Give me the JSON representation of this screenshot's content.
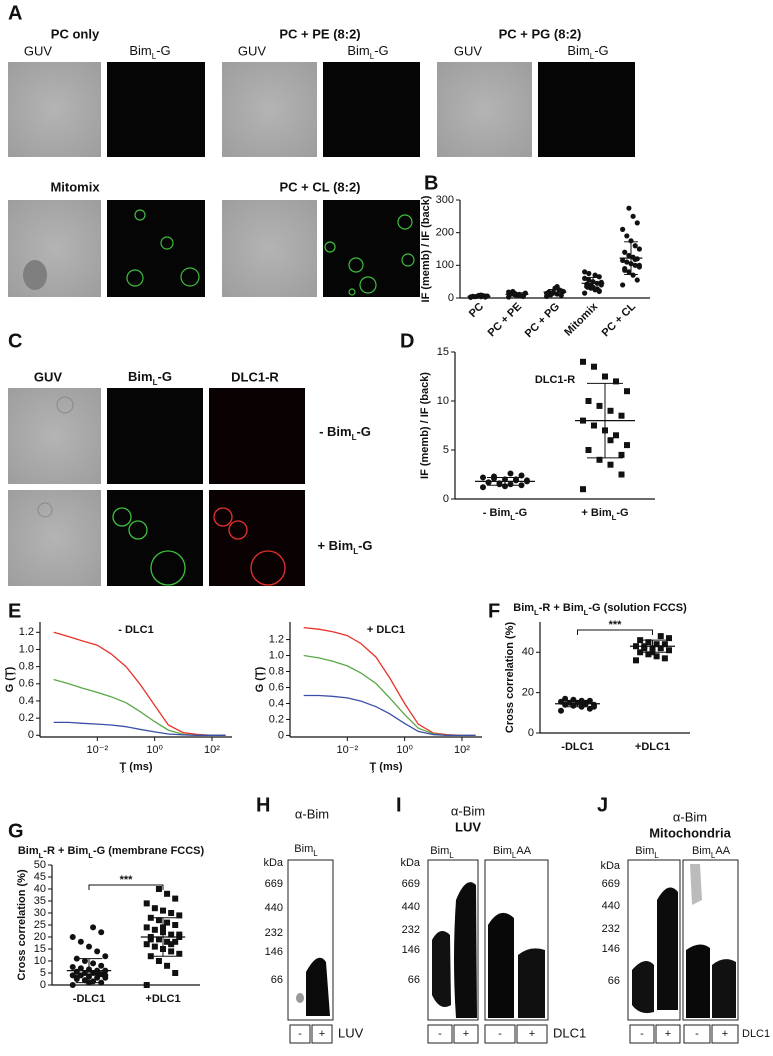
{
  "panels": {
    "A": {
      "letter": "A",
      "groups": [
        {
          "title": "PC only",
          "left": "GUV",
          "right": [
            "Bim",
            "L",
            "-G"
          ]
        },
        {
          "title": "PC +  PE (8:2)",
          "left": "GUV",
          "right": [
            "Bim",
            "L",
            "-G"
          ]
        },
        {
          "title": "PC + PG (8:2)",
          "left": "GUV",
          "right": [
            "Bim",
            "L",
            "-G"
          ]
        },
        {
          "title": "Mitomix"
        },
        {
          "title": "PC + CL (8:2)"
        }
      ]
    },
    "B": {
      "letter": "B"
    },
    "C": {
      "letter": "C",
      "columns": [
        "GUV",
        [
          "Bim",
          "L",
          "-G"
        ],
        "DLC1-R"
      ],
      "rows": [
        [
          "- Bim",
          "L",
          "-G"
        ],
        [
          "+ Bim",
          "L",
          "-G"
        ]
      ]
    },
    "D": {
      "letter": "D"
    },
    "E": {
      "letter": "E"
    },
    "F": {
      "letter": "F"
    },
    "G": {
      "letter": "G"
    },
    "H": {
      "letter": "H",
      "antibody": "α-Bim",
      "lanes": [
        [
          "Bim",
          "L"
        ]
      ],
      "kda": "kDa",
      "markers": [
        669,
        440,
        232,
        146,
        66
      ],
      "signs": [
        "-",
        "+"
      ],
      "condition": "LUV"
    },
    "I": {
      "letter": "I",
      "antibody": "α-Bim",
      "sample": "LUV",
      "lanes": [
        [
          "Bim",
          "L"
        ],
        [
          "Bim",
          "L",
          "AA"
        ]
      ],
      "kda": "kDa",
      "markers": [
        669,
        440,
        232,
        146,
        66
      ],
      "signs": [
        "-",
        "+",
        "-",
        "+"
      ],
      "condition": "DLC1"
    },
    "J": {
      "letter": "J",
      "antibody": "α-Bim",
      "sample": "Mitochondria",
      "lanes": [
        [
          "Bim",
          "L"
        ],
        [
          "Bim",
          "L",
          "AA"
        ]
      ],
      "kda": "kDa",
      "markers": [
        669,
        440,
        232,
        146,
        66
      ],
      "signs": [
        "-",
        "+",
        "-",
        "+"
      ],
      "condition": "DLC1"
    }
  },
  "chart_data": [
    {
      "type": "strip",
      "y_label": "IF (memb) / IF (back)",
      "categories": [
        "PC",
        "PC + PE",
        "PC + PG",
        "Mitomix",
        "PC + CL"
      ],
      "values": [
        [
          2,
          3,
          4,
          5,
          5,
          6,
          7,
          8,
          4,
          3,
          6,
          9
        ],
        [
          3,
          5,
          8,
          10,
          12,
          15,
          6,
          9,
          20,
          18,
          7,
          11,
          14
        ],
        [
          5,
          8,
          12,
          15,
          18,
          20,
          25,
          30,
          10,
          14,
          22,
          35,
          17
        ],
        [
          15,
          20,
          25,
          30,
          35,
          40,
          45,
          50,
          55,
          60,
          65,
          70,
          38,
          42,
          48,
          28,
          33,
          75,
          80,
          22
        ],
        [
          40,
          55,
          70,
          80,
          90,
          95,
          100,
          105,
          110,
          115,
          120,
          125,
          130,
          140,
          150,
          160,
          175,
          190,
          210,
          230,
          250,
          275,
          85,
          100,
          118
        ]
      ],
      "means": [
        5,
        11,
        18,
        45,
        122
      ],
      "sds": [
        2,
        5,
        8,
        18,
        50
      ],
      "ylim": [
        0,
        300
      ],
      "yticks": [
        0,
        100,
        200,
        300
      ],
      "color": "#111111"
    },
    {
      "type": "strip",
      "title": "DLC1-R",
      "y_label": "IF (memb) / IF (back)",
      "categories": [
        [
          "- Bim",
          "L",
          "-G"
        ],
        [
          "+ Bim",
          "L",
          "-G"
        ]
      ],
      "values": [
        [
          1.2,
          1.4,
          1.5,
          1.6,
          1.7,
          1.8,
          1.9,
          2.0,
          2.1,
          2.2,
          2.4,
          2.6,
          1.5,
          1.7,
          1.9,
          2.0,
          1.3,
          2.3
        ],
        [
          1.0,
          2.5,
          3.5,
          4.0,
          5.0,
          5.5,
          6.5,
          7.0,
          7.5,
          8.0,
          8.5,
          9.0,
          9.5,
          10.0,
          11.0,
          12.0,
          12.5,
          13.5,
          14.0,
          4.5,
          6.0
        ]
      ],
      "means": [
        1.8,
        8
      ],
      "sds": [
        0.4,
        3.8
      ],
      "markers": [
        "circle",
        "square"
      ],
      "ylim": [
        0,
        15
      ],
      "yticks": [
        0,
        5,
        10,
        15
      ],
      "color": "#111111"
    },
    {
      "type": "line",
      "title": "- DLC1",
      "y_label": "G (Ţ)",
      "x_label": "Ţ (ms)",
      "xlog": true,
      "x": [
        0.0003,
        0.001,
        0.003,
        0.01,
        0.03,
        0.1,
        0.3,
        1,
        3,
        10,
        30,
        100,
        300
      ],
      "series": [
        {
          "color": "#e8322a",
          "values": [
            1.2,
            1.15,
            1.1,
            1.05,
            0.95,
            0.8,
            0.6,
            0.35,
            0.12,
            0.03,
            0.01,
            0,
            0
          ]
        },
        {
          "color": "#5aa846",
          "values": [
            0.65,
            0.6,
            0.55,
            0.5,
            0.45,
            0.38,
            0.28,
            0.16,
            0.06,
            0.01,
            0,
            0,
            0
          ]
        },
        {
          "color": "#3b4fa8",
          "values": [
            0.15,
            0.15,
            0.14,
            0.13,
            0.12,
            0.1,
            0.07,
            0.04,
            0.015,
            0.005,
            0,
            0,
            0
          ]
        }
      ],
      "xlim": [
        0.0001,
        500
      ],
      "xticks": [
        {
          "value": 0.01,
          "label": "10⁻²"
        },
        {
          "value": 1,
          "label": "10⁰"
        },
        {
          "value": 100,
          "label": "10²"
        }
      ],
      "ylim": [
        -0.02,
        1.32
      ],
      "yticks": [
        0,
        0.2,
        0.4,
        0.6,
        0.8,
        {
          "value": 1,
          "label": "1.0"
        },
        1.2
      ]
    },
    {
      "type": "line",
      "title": "+ DLC1",
      "y_label": "G (Ţ)",
      "x_label": "Ţ (ms)",
      "xlog": true,
      "x": [
        0.0003,
        0.001,
        0.003,
        0.01,
        0.03,
        0.1,
        0.3,
        1,
        3,
        10,
        30,
        100,
        300
      ],
      "series": [
        {
          "color": "#e8322a",
          "values": [
            1.35,
            1.33,
            1.3,
            1.25,
            1.15,
            0.98,
            0.72,
            0.4,
            0.14,
            0.03,
            0.01,
            0,
            0
          ]
        },
        {
          "color": "#5aa846",
          "values": [
            1.0,
            0.97,
            0.93,
            0.87,
            0.78,
            0.65,
            0.47,
            0.26,
            0.09,
            0.02,
            0,
            0,
            0
          ]
        },
        {
          "color": "#3b4fa8",
          "values": [
            0.5,
            0.5,
            0.49,
            0.47,
            0.43,
            0.36,
            0.27,
            0.15,
            0.05,
            0.01,
            0,
            0,
            0
          ]
        }
      ],
      "xlim": [
        0.0001,
        500
      ],
      "xticks": [
        {
          "value": 0.01,
          "label": "10⁻²"
        },
        {
          "value": 1,
          "label": "10⁰"
        },
        {
          "value": 100,
          "label": "10²"
        }
      ],
      "ylim": [
        -0.02,
        1.42
      ],
      "yticks": [
        0,
        0.2,
        0.4,
        0.6,
        0.8,
        {
          "value": 1,
          "label": "1.0"
        },
        1.2
      ]
    },
    {
      "type": "strip",
      "title": [
        "Bim",
        "L",
        "-R + Bim",
        "L",
        "-G (solution FCCS)"
      ],
      "y_label": "Cross correlation (%)",
      "categories": [
        "-DLC1",
        "+DLC1"
      ],
      "values": [
        [
          11,
          12,
          13,
          13.5,
          14,
          14,
          14.5,
          15,
          15,
          15.5,
          16,
          16,
          16.5,
          17,
          13,
          15
        ],
        [
          36,
          37,
          38,
          39,
          40,
          41,
          42,
          42,
          43,
          43,
          44,
          44,
          45,
          46,
          47,
          48,
          40,
          42
        ]
      ],
      "means": [
        14.5,
        43
      ],
      "sds": [
        1.5,
        3
      ],
      "markers": [
        "circle",
        "square"
      ],
      "significance": "***",
      "ylim": [
        0,
        55
      ],
      "yticks": [
        0,
        20,
        40
      ],
      "color": "#111111"
    },
    {
      "type": "strip",
      "title": [
        "Bim",
        "L",
        "-R + Bim",
        "L",
        "-G (membrane FCCS)"
      ],
      "y_label": "Cross correlation (%)",
      "categories": [
        "-DLC1",
        "+DLC1"
      ],
      "values": [
        [
          0,
          1,
          1.5,
          2,
          2.5,
          3,
          3,
          3.5,
          4,
          4,
          4.5,
          5,
          5,
          5.5,
          6,
          6,
          6.5,
          7,
          7.5,
          8,
          9,
          10,
          11,
          12,
          14,
          16,
          18,
          20,
          22,
          24,
          2,
          3,
          4,
          5,
          1
        ],
        [
          0,
          5,
          8,
          10,
          12,
          13,
          14,
          15,
          16,
          17,
          18,
          18,
          19,
          20,
          20,
          21,
          22,
          23,
          24,
          25,
          26,
          27,
          28,
          29,
          30,
          31,
          32,
          34,
          36,
          38,
          40,
          19,
          21,
          17,
          24
        ]
      ],
      "means": [
        6,
        20
      ],
      "sds": [
        5,
        8
      ],
      "markers": [
        "circle",
        "square"
      ],
      "significance": "***",
      "ylim": [
        0,
        50
      ],
      "yticks": [
        0,
        5,
        10,
        15,
        20,
        25,
        30,
        35,
        40,
        45,
        50
      ],
      "color": "#111111"
    }
  ]
}
